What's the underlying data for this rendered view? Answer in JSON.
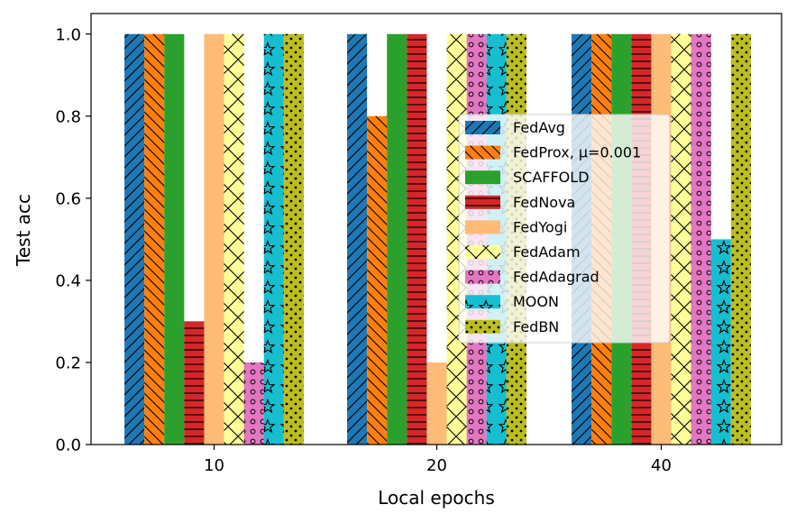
{
  "chart_data": {
    "type": "bar",
    "xlabel": "Local epochs",
    "ylabel": "Test acc",
    "categories": [
      "10",
      "20",
      "40"
    ],
    "ylim": [
      0,
      1.05
    ],
    "yticks": [
      "0.0",
      "0.2",
      "0.4",
      "0.6",
      "0.8",
      "1.0"
    ],
    "legend_position": "center-right",
    "grid": false,
    "series": [
      {
        "name": "FedAvg",
        "values": [
          1.0,
          1.0,
          1.0
        ],
        "color": "#1f77b4",
        "hatch": "diagonal"
      },
      {
        "name": "FedProx, μ=0.001",
        "values": [
          1.0,
          0.8,
          1.0
        ],
        "color": "#ff7f0e",
        "hatch": "backdiagonal"
      },
      {
        "name": "SCAFFOLD",
        "values": [
          1.0,
          1.0,
          1.0
        ],
        "color": "#2ca02c",
        "hatch": "none"
      },
      {
        "name": "FedNova",
        "values": [
          0.3,
          1.0,
          1.0
        ],
        "color": "#d62728",
        "hatch": "horizontal"
      },
      {
        "name": "FedYogi",
        "values": [
          1.0,
          0.2,
          1.0
        ],
        "color": "#ffbb78",
        "hatch": "none"
      },
      {
        "name": "FedAdam",
        "values": [
          1.0,
          1.0,
          1.0
        ],
        "color": "#ffff99",
        "hatch": "cross"
      },
      {
        "name": "FedAdagrad",
        "values": [
          0.2,
          1.0,
          1.0
        ],
        "color": "#e377c2",
        "hatch": "circles"
      },
      {
        "name": "MOON",
        "values": [
          1.0,
          1.0,
          0.5
        ],
        "color": "#17becf",
        "hatch": "stars"
      },
      {
        "name": "FedBN",
        "values": [
          1.0,
          1.0,
          1.0
        ],
        "color": "#bcbd22",
        "hatch": "dots"
      }
    ]
  }
}
